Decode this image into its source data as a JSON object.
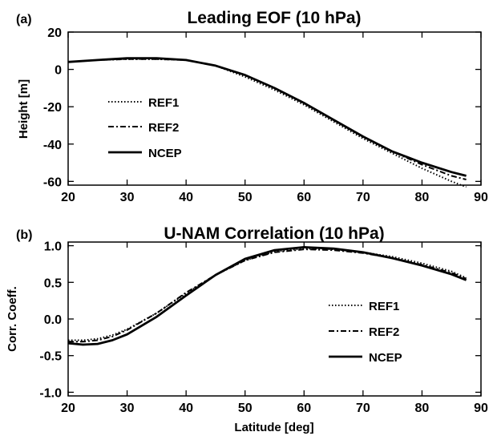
{
  "chart_data": [
    {
      "type": "line",
      "panel_label": "(a)",
      "title": "Leading EOF (10 hPa)",
      "xlabel": "",
      "ylabel": "Height [m]",
      "xlim": [
        20,
        90
      ],
      "ylim": [
        -62,
        20
      ],
      "xticks": [
        20,
        30,
        40,
        50,
        60,
        70,
        80,
        90
      ],
      "yticks": [
        20,
        0,
        -20,
        -40,
        -60
      ],
      "legend_position": "left",
      "series": [
        {
          "name": "REF1",
          "style": "dotted",
          "x": [
            20,
            25,
            30,
            35,
            40,
            45,
            50,
            55,
            60,
            65,
            70,
            75,
            80,
            85,
            87.5
          ],
          "y": [
            4,
            5,
            5.5,
            5.5,
            5,
            2,
            -4,
            -11,
            -19,
            -28,
            -37,
            -45,
            -53,
            -60,
            -63
          ]
        },
        {
          "name": "REF2",
          "style": "dash-dot",
          "x": [
            20,
            25,
            30,
            35,
            40,
            45,
            50,
            55,
            60,
            65,
            70,
            75,
            80,
            85,
            87.5
          ],
          "y": [
            4,
            5,
            5.5,
            5.5,
            5,
            2,
            -3,
            -10,
            -18,
            -27,
            -36,
            -44,
            -51,
            -57,
            -59
          ]
        },
        {
          "name": "NCEP",
          "style": "solid",
          "x": [
            20,
            25,
            30,
            35,
            40,
            45,
            50,
            55,
            60,
            65,
            70,
            75,
            80,
            85,
            87.5
          ],
          "y": [
            4,
            5,
            6,
            6,
            5,
            2,
            -3,
            -10,
            -18,
            -27,
            -36,
            -44,
            -50,
            -55,
            -57
          ]
        }
      ]
    },
    {
      "type": "line",
      "panel_label": "(b)",
      "title": "U-NAM Correlation (10 hPa)",
      "xlabel": "Latitude [deg]",
      "ylabel": "Corr. Coeff.",
      "xlim": [
        20,
        90
      ],
      "ylim": [
        -1.05,
        1.05
      ],
      "xticks": [
        20,
        30,
        40,
        50,
        60,
        70,
        80,
        90
      ],
      "yticks": [
        "1.0",
        "0.5",
        "0.0",
        "-0.5",
        "-1.0"
      ],
      "legend_position": "right",
      "series": [
        {
          "name": "REF1",
          "style": "dotted",
          "x": [
            20,
            22.5,
            25,
            27.5,
            30,
            35,
            40,
            45,
            50,
            55,
            60,
            65,
            70,
            75,
            80,
            85,
            87.5
          ],
          "y": [
            -0.29,
            -0.29,
            -0.27,
            -0.22,
            -0.14,
            0.08,
            0.35,
            0.6,
            0.8,
            0.92,
            0.96,
            0.95,
            0.91,
            0.85,
            0.76,
            0.65,
            0.56
          ]
        },
        {
          "name": "REF2",
          "style": "dash-dot",
          "x": [
            20,
            22.5,
            25,
            27.5,
            30,
            35,
            40,
            45,
            50,
            55,
            60,
            65,
            70,
            75,
            80,
            85,
            87.5
          ],
          "y": [
            -0.31,
            -0.31,
            -0.29,
            -0.24,
            -0.15,
            0.08,
            0.36,
            0.6,
            0.8,
            0.91,
            0.95,
            0.94,
            0.9,
            0.83,
            0.74,
            0.63,
            0.55
          ]
        },
        {
          "name": "NCEP",
          "style": "solid",
          "x": [
            20,
            22.5,
            25,
            27.5,
            30,
            35,
            40,
            45,
            50,
            55,
            60,
            65,
            70,
            75,
            80,
            85,
            87.5
          ],
          "y": [
            -0.33,
            -0.35,
            -0.34,
            -0.29,
            -0.21,
            0.03,
            0.32,
            0.6,
            0.82,
            0.94,
            0.98,
            0.96,
            0.91,
            0.83,
            0.73,
            0.61,
            0.53
          ]
        }
      ]
    }
  ]
}
